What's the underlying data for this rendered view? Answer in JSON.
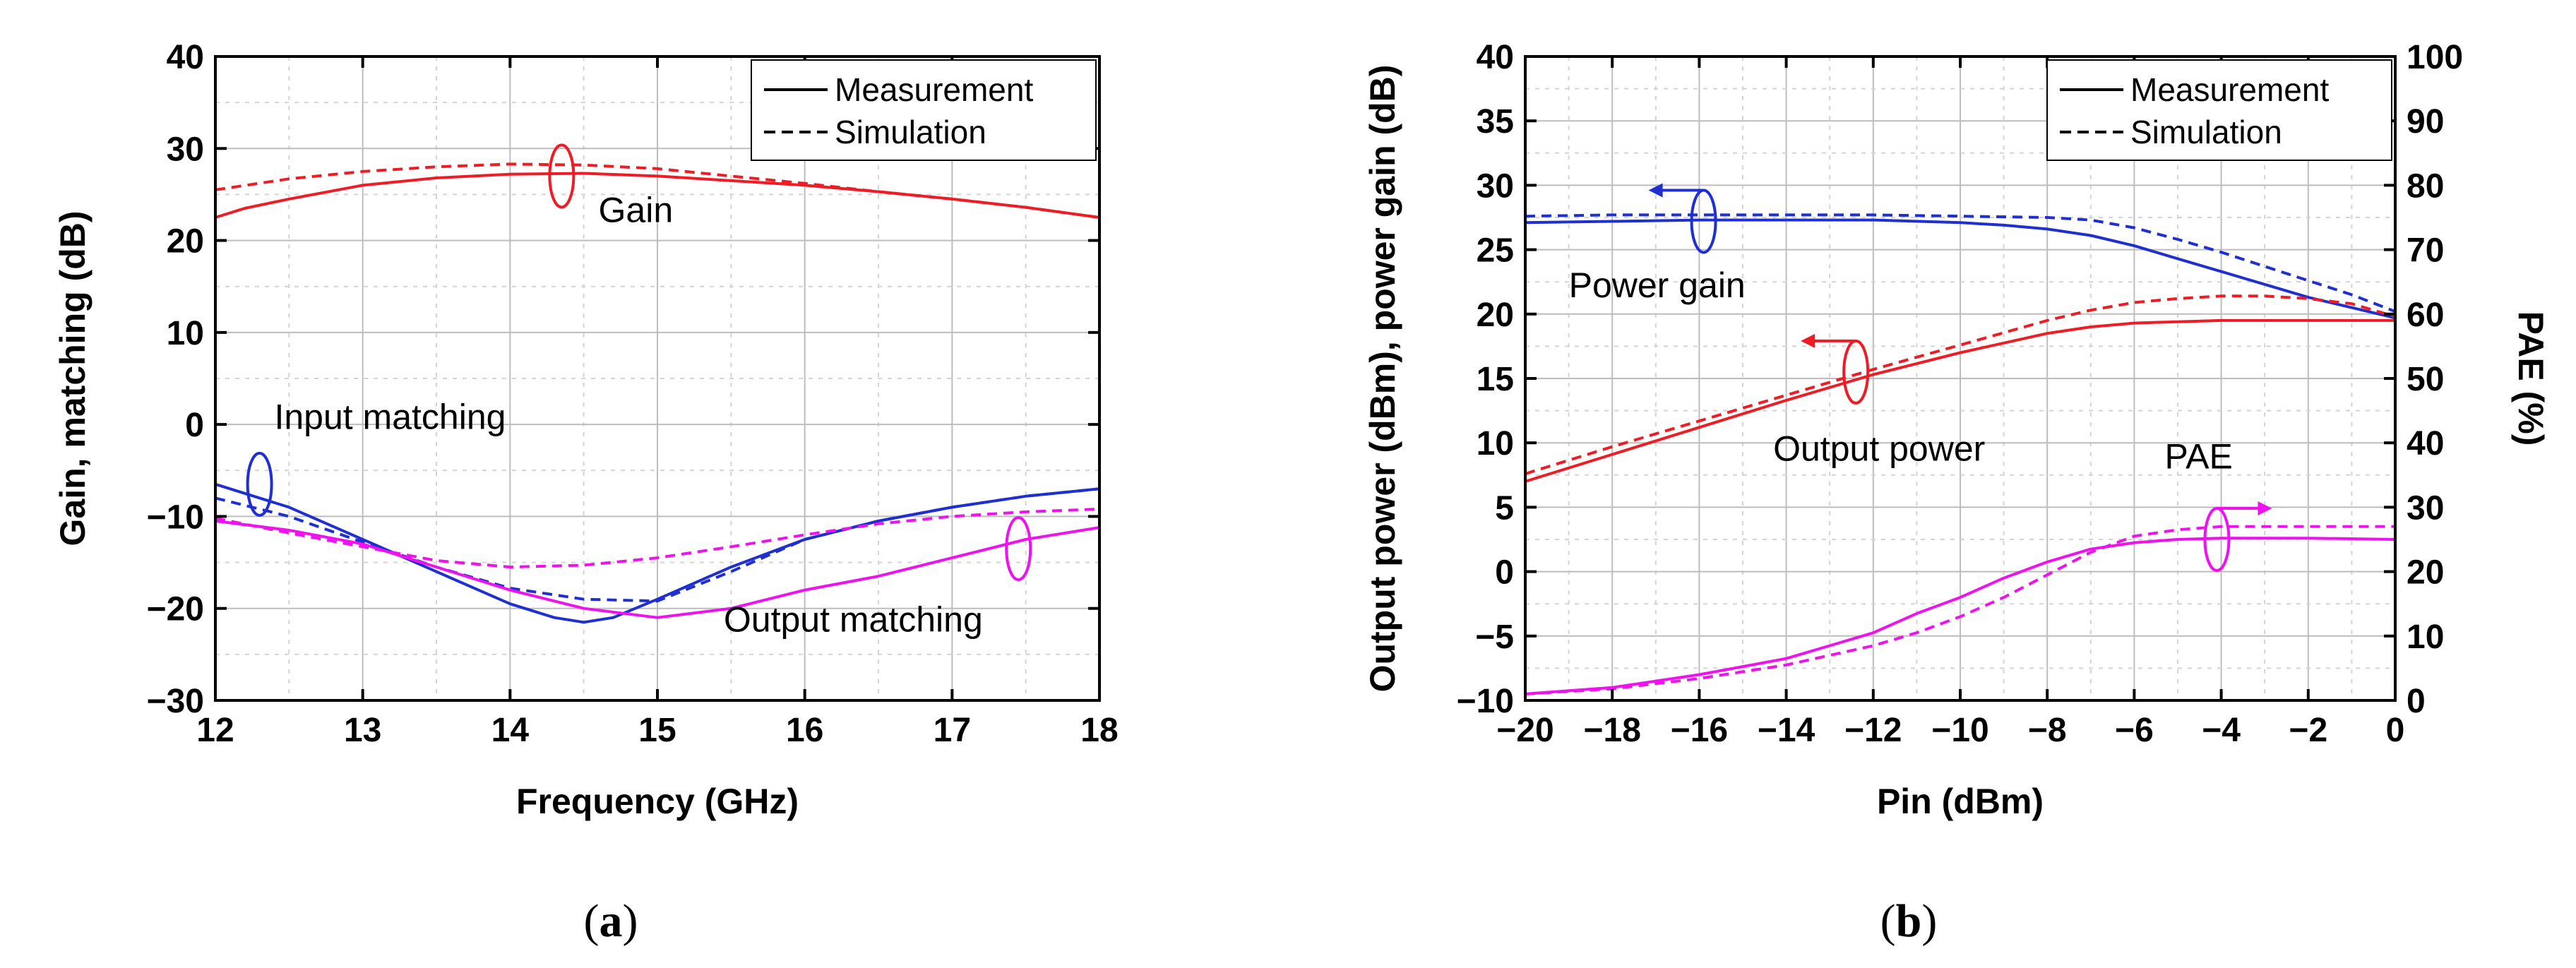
{
  "chart_data": [
    {
      "id": "a",
      "type": "line",
      "caption": "a",
      "xlabel": "Frequency (GHz)",
      "ylabel": "Gain, matching (dB)",
      "xlim": [
        12,
        18
      ],
      "ylim": [
        -30,
        40
      ],
      "xticks": [
        12,
        13,
        14,
        15,
        16,
        17,
        18
      ],
      "yticks": [
        -30,
        -20,
        -10,
        0,
        10,
        20,
        30,
        40
      ],
      "grid": true,
      "legend": {
        "position": "top-right",
        "entries": [
          {
            "label": "Measurement",
            "style": "solid"
          },
          {
            "label": "Simulation",
            "style": "dashed"
          }
        ]
      },
      "colors": {
        "gain": "#ee1c25",
        "input": "#1f2fd0",
        "output": "#ee12ee"
      },
      "annotations": [
        {
          "text": "Gain",
          "x": 14.6,
          "y": 22,
          "marker_x": 14.35,
          "marker_y": 27,
          "color": "#ee1c25"
        },
        {
          "text": "Input matching",
          "x": 12.4,
          "y": -0.5,
          "marker_x": 12.3,
          "marker_y": -6.5,
          "color": "#1f2fd0"
        },
        {
          "text": "Output matching",
          "x": 15.45,
          "y": -22.5,
          "marker_x": 17.45,
          "marker_y": -13.5,
          "color": "#ee12ee"
        }
      ],
      "series": [
        {
          "name": "Gain measurement",
          "color": "#ee1c25",
          "style": "solid",
          "x": [
            12,
            12.2,
            12.5,
            13,
            13.5,
            14,
            14.5,
            15,
            15.5,
            16,
            16.5,
            17,
            17.5,
            18
          ],
          "y": [
            22.5,
            23.5,
            24.5,
            26,
            26.8,
            27.2,
            27.3,
            27,
            26.5,
            26,
            25.3,
            24.5,
            23.6,
            22.5
          ]
        },
        {
          "name": "Gain simulation",
          "color": "#ee1c25",
          "style": "dashed",
          "x": [
            12,
            12.5,
            13,
            13.5,
            14,
            14.5,
            15,
            15.5,
            16,
            16.5,
            17,
            17.5,
            18
          ],
          "y": [
            25.5,
            26.7,
            27.5,
            28,
            28.3,
            28.2,
            27.8,
            27,
            26.2,
            25.3,
            24.5,
            23.6,
            22.5
          ]
        },
        {
          "name": "Input matching measurement",
          "color": "#1f2fd0",
          "style": "solid",
          "x": [
            12,
            12.5,
            13,
            13.5,
            14,
            14.3,
            14.5,
            14.7,
            15,
            15.5,
            16,
            16.5,
            17,
            17.5,
            18
          ],
          "y": [
            -6.5,
            -9,
            -12.5,
            -16,
            -19.5,
            -21,
            -21.5,
            -21,
            -19,
            -15.5,
            -12.5,
            -10.5,
            -9,
            -7.8,
            -7
          ]
        },
        {
          "name": "Input matching simulation",
          "color": "#1f2fd0",
          "style": "dashed",
          "x": [
            12,
            12.5,
            13,
            13.5,
            14,
            14.5,
            15,
            15.5,
            16,
            16.5,
            17,
            17.5,
            18
          ],
          "y": [
            -8,
            -10,
            -12.8,
            -15.5,
            -17.8,
            -19,
            -19.2,
            -16,
            -12.5,
            -10.5,
            -9,
            -7.8,
            -7
          ]
        },
        {
          "name": "Output matching measurement",
          "color": "#ee12ee",
          "style": "solid",
          "x": [
            12,
            12.5,
            13,
            13.5,
            14,
            14.5,
            15,
            15.5,
            16,
            16.5,
            17,
            17.5,
            18
          ],
          "y": [
            -10.5,
            -11.5,
            -13,
            -15.5,
            -18,
            -20,
            -21,
            -20,
            -18,
            -16.5,
            -14.5,
            -12.5,
            -11.2
          ]
        },
        {
          "name": "Output matching simulation",
          "color": "#ee12ee",
          "style": "dashed",
          "x": [
            12,
            12.5,
            13,
            13.5,
            14,
            14.5,
            15,
            15.5,
            16,
            16.5,
            17,
            17.5,
            18
          ],
          "y": [
            -10.2,
            -11.8,
            -13.3,
            -14.8,
            -15.5,
            -15.3,
            -14.5,
            -13.3,
            -12,
            -10.8,
            -10,
            -9.5,
            -9.2
          ]
        }
      ]
    },
    {
      "id": "b",
      "type": "line",
      "caption": "b",
      "xlabel": "Pin (dBm)",
      "ylabel": "Output power (dBm), power gain (dB)",
      "y2label": "PAE (%)",
      "xlim": [
        -20,
        0
      ],
      "ylim": [
        -10,
        40
      ],
      "y2lim": [
        0,
        100
      ],
      "xticks": [
        -20,
        -18,
        -16,
        -14,
        -12,
        -10,
        -8,
        -6,
        -4,
        -2,
        0
      ],
      "yticks": [
        -10,
        -5,
        0,
        5,
        10,
        15,
        20,
        25,
        30,
        35,
        40
      ],
      "y2ticks": [
        0,
        10,
        20,
        30,
        40,
        50,
        60,
        70,
        80,
        90,
        100
      ],
      "grid": true,
      "legend": {
        "position": "top-right",
        "entries": [
          {
            "label": "Measurement",
            "style": "solid"
          },
          {
            "label": "Simulation",
            "style": "dashed"
          }
        ]
      },
      "colors": {
        "gain": "#1f2fd0",
        "pout": "#ee1c25",
        "pae": "#ee12ee"
      },
      "annotations": [
        {
          "text": "Power gain",
          "x": -19,
          "y": 21.3,
          "marker_x": -15.9,
          "marker_y": 27.2,
          "arrow": "left",
          "axis": "left",
          "color": "#1f2fd0"
        },
        {
          "text": "Output power",
          "x": -14.3,
          "y": 8.6,
          "marker_x": -12.4,
          "marker_y": 15.5,
          "arrow": "left",
          "axis": "left",
          "color": "#ee1c25"
        },
        {
          "text": "PAE",
          "x": -5.3,
          "y": 8,
          "marker_x": -4.1,
          "marker_y": 2.5,
          "arrow": "right",
          "axis": "right",
          "color": "#ee12ee"
        }
      ],
      "series": [
        {
          "name": "Power gain measurement",
          "axis": "left",
          "color": "#1f2fd0",
          "style": "solid",
          "x": [
            -20,
            -18,
            -16,
            -14,
            -12,
            -10,
            -9,
            -8,
            -7,
            -6,
            -5,
            -4,
            -3,
            -2,
            -1,
            0
          ],
          "y": [
            27.1,
            27.2,
            27.3,
            27.3,
            27.3,
            27.1,
            26.9,
            26.6,
            26.1,
            25.3,
            24.3,
            23.3,
            22.3,
            21.3,
            20.5,
            19.7
          ]
        },
        {
          "name": "Power gain simulation",
          "axis": "left",
          "color": "#1f2fd0",
          "style": "dashed",
          "x": [
            -20,
            -18,
            -16,
            -14,
            -12,
            -10,
            -8,
            -7,
            -6,
            -5,
            -4,
            -3,
            -2,
            -1,
            0
          ],
          "y": [
            27.6,
            27.7,
            27.7,
            27.7,
            27.7,
            27.6,
            27.5,
            27.3,
            26.7,
            25.8,
            24.8,
            23.7,
            22.6,
            21.5,
            20.2
          ]
        },
        {
          "name": "Output power measurement",
          "axis": "left",
          "color": "#ee1c25",
          "style": "solid",
          "x": [
            -20,
            -18,
            -16,
            -14,
            -12,
            -10,
            -8,
            -7,
            -6,
            -5,
            -4,
            -2,
            0
          ],
          "y": [
            7.0,
            9.1,
            11.2,
            13.3,
            15.3,
            17.0,
            18.5,
            19.0,
            19.3,
            19.4,
            19.5,
            19.5,
            19.5
          ]
        },
        {
          "name": "Output power simulation",
          "axis": "left",
          "color": "#ee1c25",
          "style": "dashed",
          "x": [
            -20,
            -18,
            -16,
            -14,
            -12,
            -10,
            -8,
            -7,
            -6,
            -5,
            -4,
            -3,
            -2,
            -1,
            0
          ],
          "y": [
            7.6,
            9.7,
            11.7,
            13.7,
            15.7,
            17.6,
            19.5,
            20.3,
            20.9,
            21.2,
            21.4,
            21.4,
            21.2,
            20.8,
            19.8
          ]
        },
        {
          "name": "PAE measurement",
          "axis": "right",
          "color": "#ee12ee",
          "style": "solid",
          "x": [
            -20,
            -18,
            -16,
            -14,
            -13,
            -12,
            -11,
            -10,
            -9,
            -8,
            -7,
            -6,
            -5,
            -4,
            -2,
            0
          ],
          "y": [
            1,
            2,
            4,
            6.5,
            8.5,
            10.5,
            13.5,
            16,
            19,
            21.5,
            23.5,
            24.5,
            25,
            25.2,
            25.2,
            25
          ]
        },
        {
          "name": "PAE simulation",
          "axis": "right",
          "color": "#ee12ee",
          "style": "dashed",
          "x": [
            -20,
            -18,
            -16,
            -14,
            -12,
            -11,
            -10,
            -9,
            -8,
            -7,
            -6,
            -5,
            -4,
            -2,
            0
          ],
          "y": [
            1,
            1.8,
            3.4,
            5.5,
            8.5,
            10.5,
            13,
            16,
            19.5,
            23,
            25.5,
            26.5,
            27,
            27,
            27
          ]
        }
      ]
    }
  ]
}
